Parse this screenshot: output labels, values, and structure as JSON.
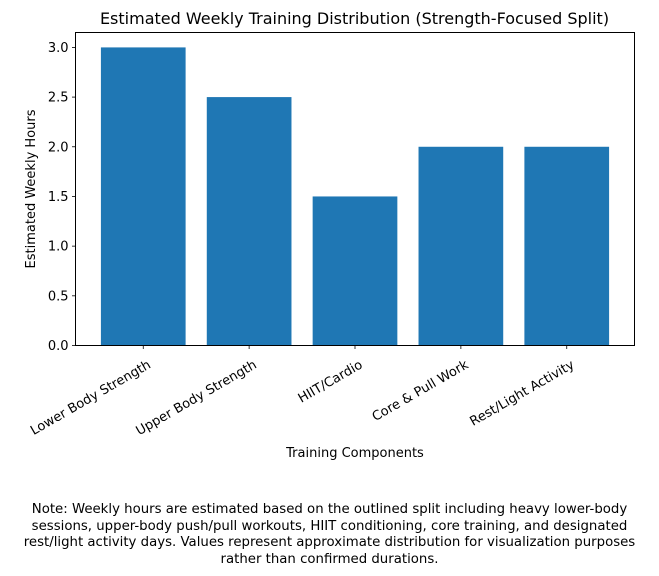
{
  "chart_data": {
    "type": "bar",
    "title": "Estimated Weekly Training Distribution (Strength-Focused Split)",
    "xlabel": "Training Components",
    "ylabel": "Estimated Weekly Hours",
    "categories": [
      "Lower Body Strength",
      "Upper Body Strength",
      "HIIT/Cardio",
      "Core & Pull Work",
      "Rest/Light Activity"
    ],
    "values": [
      3.0,
      2.5,
      1.5,
      2.0,
      2.0
    ],
    "ylim": [
      0,
      3.15
    ],
    "yticks": [
      "0.0",
      "0.5",
      "1.0",
      "1.5",
      "2.0",
      "2.5",
      "3.0"
    ],
    "bar_color": "#1f77b4",
    "grid": false,
    "xtick_rotation_deg": 30
  },
  "note_lines": [
    "Note: Weekly hours are estimated based on the outlined split including heavy lower-body",
    "sessions, upper-body push/pull workouts, HIIT conditioning, core training, and designated",
    "rest/light activity days. Values represent approximate distribution for visualization purposes",
    "rather than confirmed durations."
  ]
}
